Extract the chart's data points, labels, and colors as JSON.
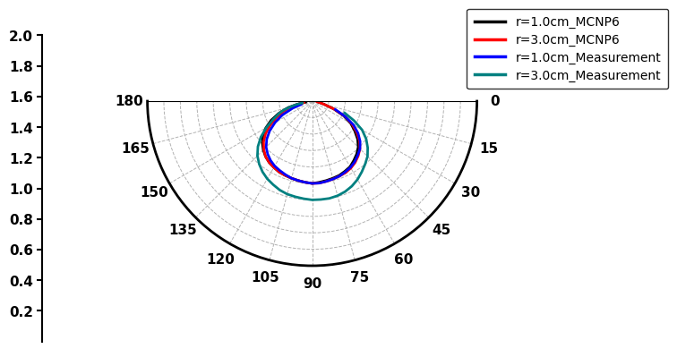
{
  "legend_entries": [
    {
      "label": "r=1.0cm_MCNP6",
      "color": "#000000"
    },
    {
      "label": "r=3.0cm_MCNP6",
      "color": "#ff0000"
    },
    {
      "label": "r=1.0cm_Measurement",
      "color": "#0000ff"
    },
    {
      "label": "r=3.0cm_Measurement",
      "color": "#008080"
    }
  ],
  "rmax": 2.0,
  "rticks": [
    0.2,
    0.4,
    0.6,
    0.8,
    1.0,
    1.2,
    1.4,
    1.6,
    1.8,
    2.0
  ],
  "theta_labels": [
    0,
    15,
    30,
    45,
    60,
    75,
    90,
    105,
    120,
    135,
    150,
    165,
    180
  ],
  "grid_color": "#aaaaaa",
  "background_color": "#ffffff",
  "series": {
    "r1_mcnp6": {
      "theta_deg": [
        10,
        15,
        20,
        25,
        30,
        35,
        40,
        45,
        50,
        55,
        60,
        65,
        70,
        75,
        80,
        85,
        90,
        95,
        100,
        105,
        110,
        115,
        120,
        125,
        130,
        135,
        140,
        145,
        150,
        155,
        160,
        165,
        168,
        170
      ],
      "r": [
        0.08,
        0.15,
        0.28,
        0.42,
        0.54,
        0.63,
        0.72,
        0.79,
        0.84,
        0.88,
        0.92,
        0.94,
        0.96,
        0.97,
        0.98,
        0.99,
        1.0,
        0.99,
        0.98,
        0.97,
        0.96,
        0.95,
        0.93,
        0.91,
        0.88,
        0.84,
        0.79,
        0.73,
        0.65,
        0.55,
        0.43,
        0.3,
        0.18,
        0.08
      ],
      "color": "#000000",
      "lw": 2.0
    },
    "r3_mcnp6": {
      "theta_deg": [
        8,
        12,
        15,
        20,
        25,
        30,
        35,
        40,
        45,
        50,
        55,
        60,
        65,
        70,
        75,
        80,
        85,
        90,
        95,
        100,
        105,
        110,
        115,
        120,
        125,
        130,
        135,
        140,
        145,
        150,
        155,
        160,
        163,
        165,
        168,
        170
      ],
      "r": [
        0.06,
        0.1,
        0.15,
        0.28,
        0.44,
        0.56,
        0.66,
        0.75,
        0.82,
        0.87,
        0.91,
        0.94,
        0.96,
        0.97,
        0.98,
        0.99,
        1.0,
        1.0,
        0.99,
        0.98,
        0.97,
        0.96,
        0.95,
        0.93,
        0.91,
        0.88,
        0.83,
        0.77,
        0.69,
        0.59,
        0.48,
        0.37,
        0.3,
        0.25,
        0.18,
        0.1
      ],
      "color": "#ff0000",
      "lw": 2.0
    },
    "r1_meas": {
      "theta_deg": [
        20,
        25,
        30,
        35,
        40,
        45,
        50,
        55,
        60,
        65,
        70,
        75,
        80,
        85,
        90,
        95,
        100,
        105,
        110,
        115,
        120,
        125,
        130,
        135,
        140,
        145,
        150,
        155,
        160,
        163
      ],
      "r": [
        0.3,
        0.44,
        0.58,
        0.68,
        0.76,
        0.82,
        0.86,
        0.9,
        0.93,
        0.95,
        0.97,
        0.98,
        0.99,
        1.0,
        1.0,
        0.99,
        0.98,
        0.97,
        0.95,
        0.93,
        0.91,
        0.88,
        0.84,
        0.79,
        0.72,
        0.63,
        0.52,
        0.4,
        0.25,
        0.14
      ],
      "color": "#0000ff",
      "lw": 2.0
    },
    "r3_meas": {
      "theta_deg": [
        20,
        25,
        30,
        35,
        40,
        45,
        50,
        55,
        60,
        65,
        70,
        75,
        80,
        85,
        90,
        95,
        100,
        105,
        110,
        115,
        120,
        125,
        130,
        135,
        140,
        145,
        150,
        155,
        160,
        162,
        163,
        165,
        167,
        168,
        170
      ],
      "r": [
        0.42,
        0.56,
        0.7,
        0.8,
        0.88,
        0.95,
        1.0,
        1.05,
        1.1,
        1.14,
        1.17,
        1.19,
        1.2,
        1.2,
        1.2,
        1.19,
        1.18,
        1.17,
        1.15,
        1.12,
        1.09,
        1.05,
        1.0,
        0.94,
        0.86,
        0.76,
        0.64,
        0.52,
        0.42,
        0.37,
        0.34,
        0.28,
        0.22,
        0.19,
        0.12
      ],
      "color": "#008080",
      "lw": 2.0
    }
  }
}
